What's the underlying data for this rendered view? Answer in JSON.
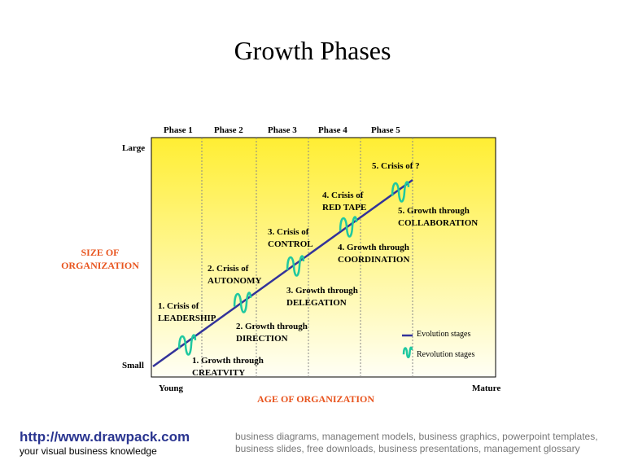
{
  "title": "Growth Phases",
  "phases": [
    "Phase 1",
    "Phase 2",
    "Phase 3",
    "Phase 4",
    "Phase 5"
  ],
  "y_axis": {
    "label_line1": "SIZE OF",
    "label_line2": "ORGANIZATION",
    "top": "Large",
    "bottom": "Small"
  },
  "x_axis": {
    "label": "AGE OF ORGANIZATION",
    "left": "Young",
    "right": "Mature"
  },
  "crises": [
    {
      "l1": "1. Crisis of",
      "l2": "LEADERSHIP"
    },
    {
      "l1": "2. Crisis of",
      "l2": "AUTONOMY"
    },
    {
      "l1": "3. Crisis of",
      "l2": "CONTROL"
    },
    {
      "l1": "4. Crisis of",
      "l2": "RED TAPE"
    },
    {
      "l1": "5. Crisis of ?",
      "l2": ""
    }
  ],
  "growths": [
    {
      "l1": "1. Growth through",
      "l2": "CREATVITY"
    },
    {
      "l1": "2. Growth through",
      "l2": "DIRECTION"
    },
    {
      "l1": "3. Growth through",
      "l2": "DELEGATION"
    },
    {
      "l1": "4. Growth through",
      "l2": "COORDINATION"
    },
    {
      "l1": "5. Growth through",
      "l2": "COLLABORATION"
    }
  ],
  "legend": {
    "evolution": "Evolution stages",
    "revolution": "Revolution stages"
  },
  "colors": {
    "line": "#33339a",
    "squiggle": "#1fc8a0",
    "axis_label": "#e8541e",
    "bg_top": "#ffee33",
    "bg_bottom": "#fffff5",
    "link": "#2a3590"
  },
  "footer": {
    "url": "http://www.drawpack.com",
    "tagline": "your visual business knowledge",
    "keywords": "business diagrams, management models, business graphics, powerpoint templates, business slides, free downloads, business presentations, management glossary"
  }
}
